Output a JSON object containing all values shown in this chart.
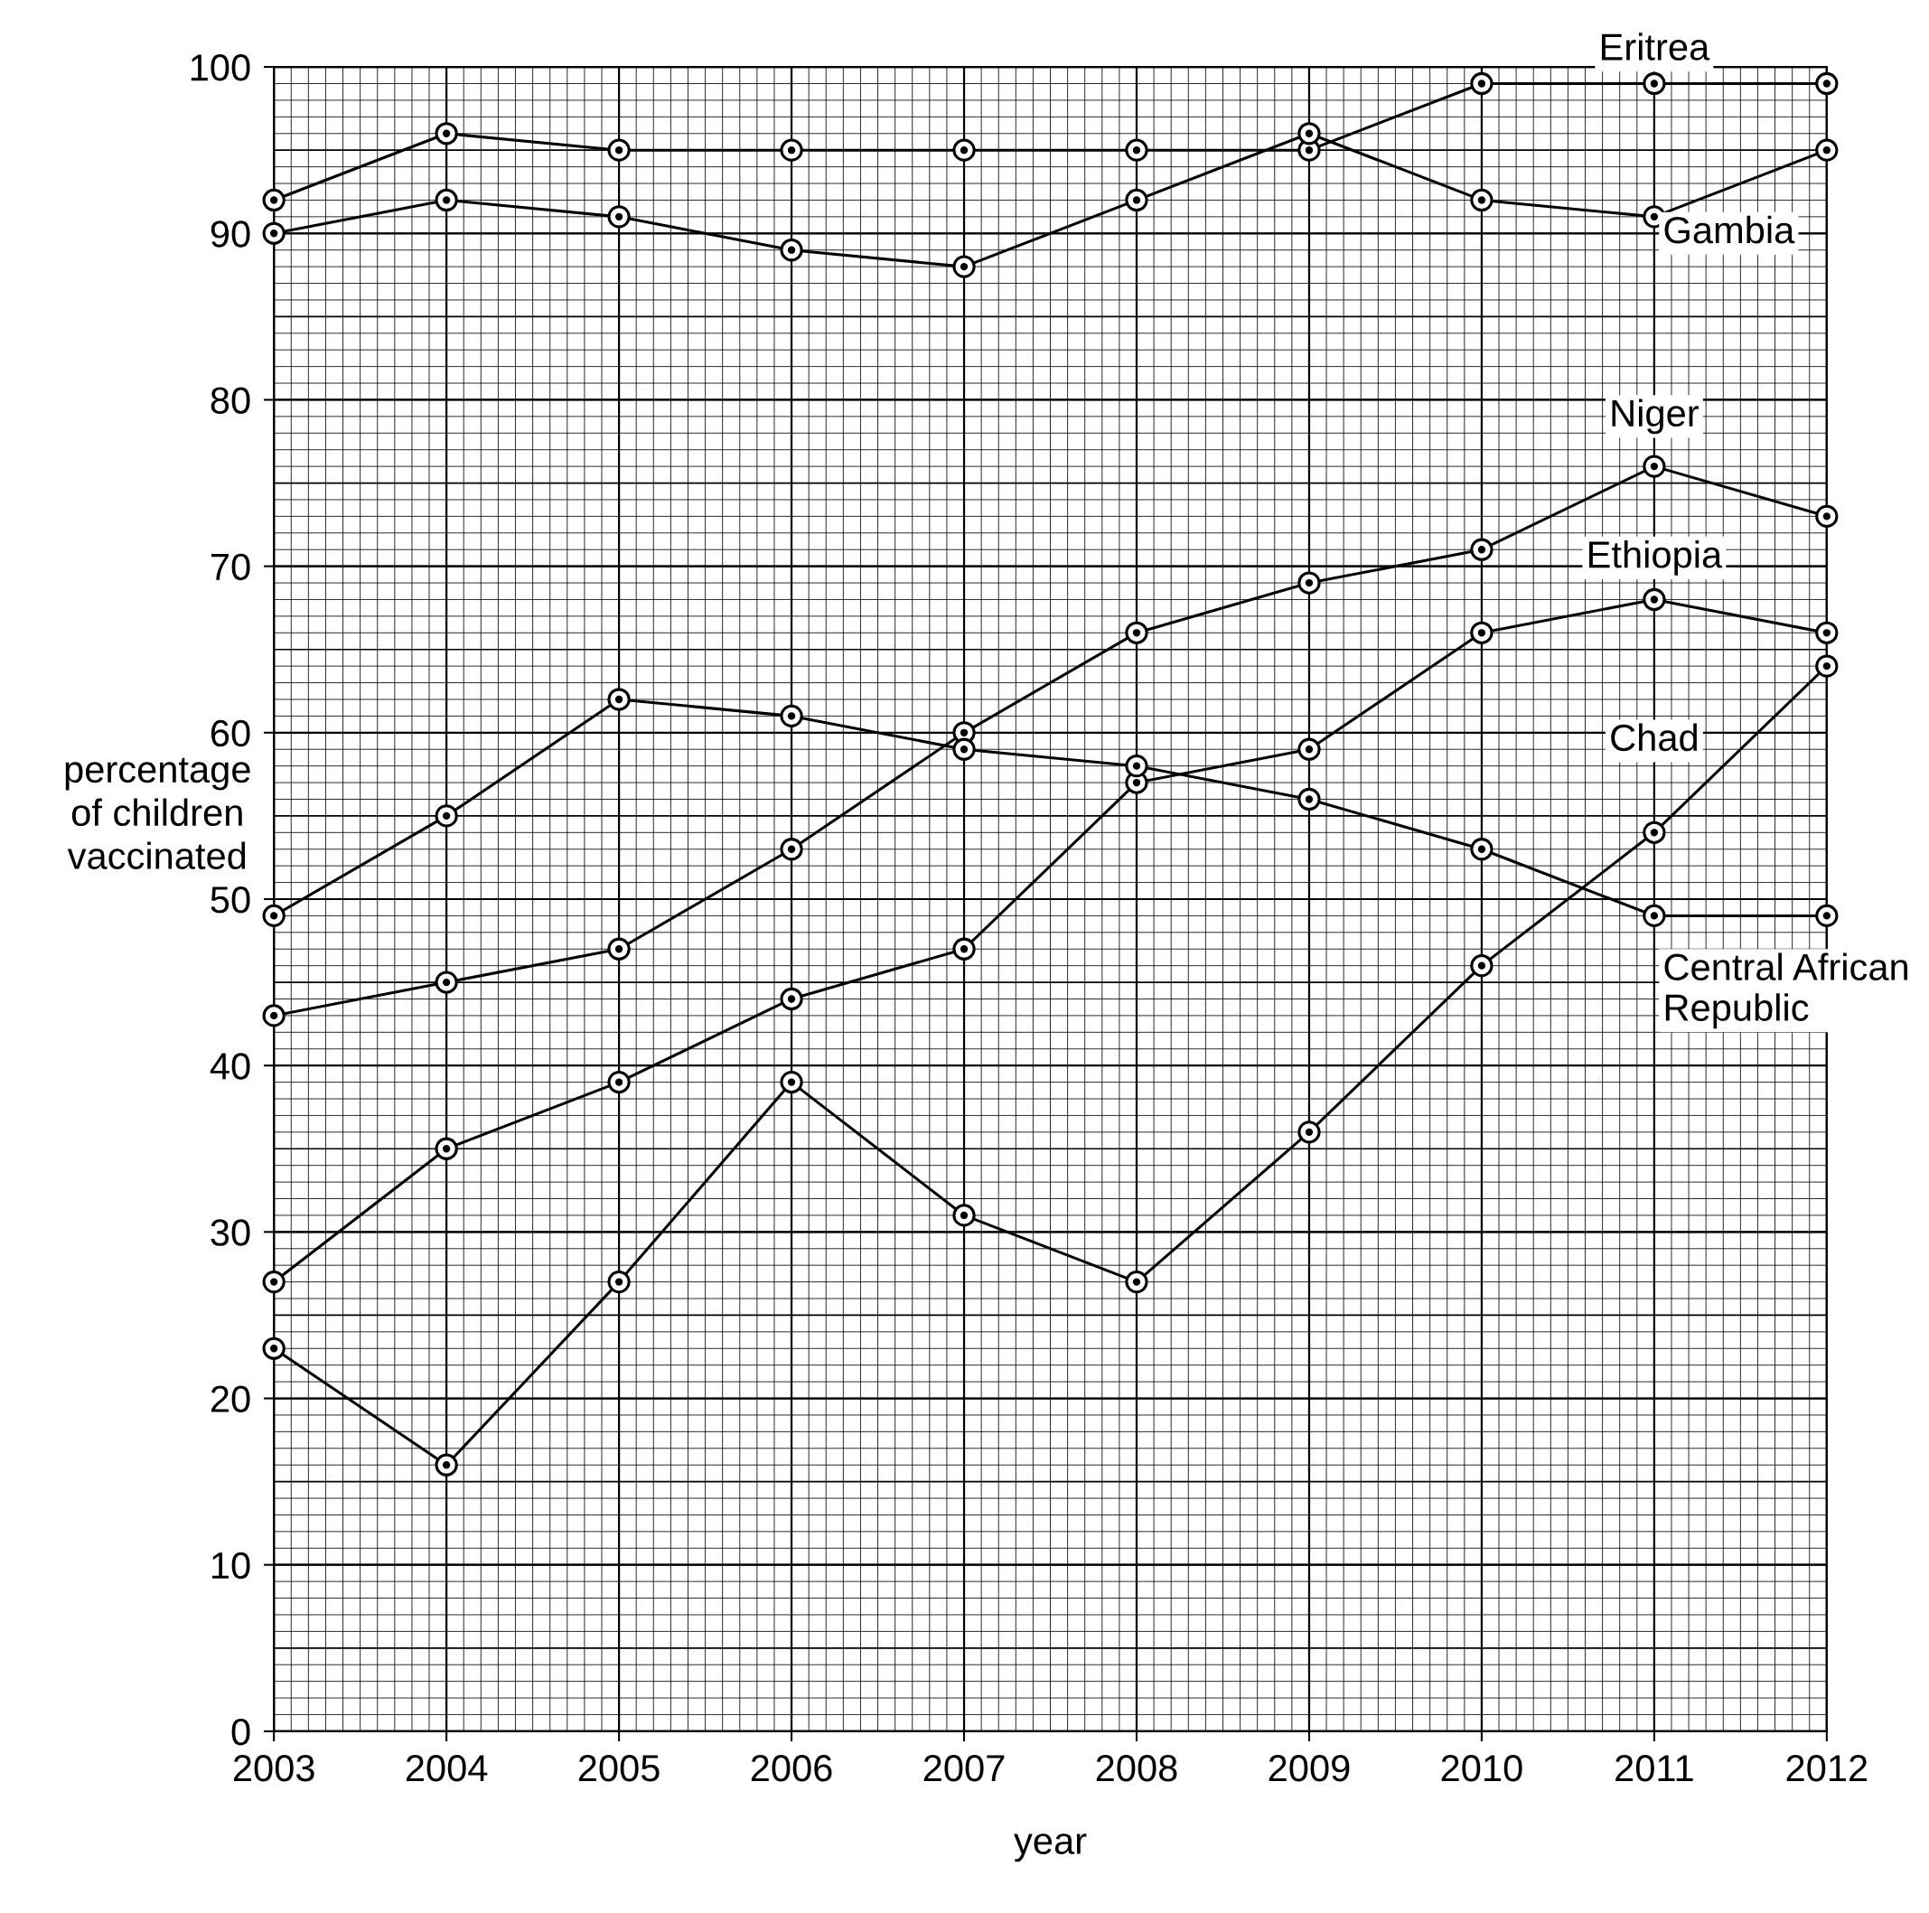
{
  "chart_data": {
    "type": "line",
    "xlabel": "year",
    "ylabel": "percentage\nof children\nvaccinated",
    "x": [
      2003,
      2004,
      2005,
      2006,
      2007,
      2008,
      2009,
      2010,
      2011,
      2012
    ],
    "xlim": [
      2003,
      2012
    ],
    "xticks": [
      2003,
      2004,
      2005,
      2006,
      2007,
      2008,
      2009,
      2010,
      2011,
      2012
    ],
    "ylim": [
      0,
      100
    ],
    "yticks": [
      0,
      10,
      20,
      30,
      40,
      50,
      60,
      70,
      80,
      90,
      100
    ],
    "grid": true,
    "marker": "circle",
    "line_style": "solid",
    "legend": false,
    "series": [
      {
        "name": "Eritrea",
        "color": "#000000",
        "values": [
          92,
          96,
          95,
          95,
          95,
          95,
          95,
          99,
          99,
          99
        ]
      },
      {
        "name": "Gambia",
        "color": "#000000",
        "values": [
          90,
          92,
          91,
          89,
          88,
          92,
          96,
          92,
          91,
          95
        ]
      },
      {
        "name": "Niger",
        "color": "#000000",
        "values": [
          43,
          45,
          47,
          53,
          60,
          66,
          69,
          71,
          76,
          73
        ]
      },
      {
        "name": "Ethiopia",
        "color": "#000000",
        "values": [
          27,
          35,
          39,
          44,
          47,
          57,
          59,
          66,
          68,
          66
        ]
      },
      {
        "name": "Chad",
        "color": "#000000",
        "values": [
          23,
          16,
          27,
          39,
          31,
          27,
          36,
          46,
          54,
          64
        ]
      },
      {
        "name": "Central African\nRepublic",
        "color": "#000000",
        "values": [
          49,
          55,
          62,
          61,
          59,
          58,
          56,
          53,
          49,
          49
        ]
      }
    ]
  }
}
